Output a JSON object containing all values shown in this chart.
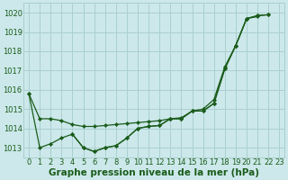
{
  "xlabel": "Graphe pression niveau de la mer (hPa)",
  "background_color": "#cce8ea",
  "grid_color": "#aacfcf",
  "line_color": "#1a5c1a",
  "marker_color": "#1a5c1a",
  "ylim": [
    1012.5,
    1020.5
  ],
  "xlim": [
    -0.5,
    23.5
  ],
  "yticks": [
    1013,
    1014,
    1015,
    1016,
    1017,
    1018,
    1019,
    1020
  ],
  "xticks": [
    0,
    1,
    2,
    3,
    4,
    5,
    6,
    7,
    8,
    9,
    10,
    11,
    12,
    13,
    14,
    15,
    16,
    17,
    18,
    19,
    20,
    21,
    22,
    23
  ],
  "series1_x": [
    0,
    1,
    2,
    3,
    4,
    5,
    6,
    7,
    8,
    9,
    10,
    11,
    12,
    13,
    14,
    15,
    16,
    17,
    18,
    19,
    20,
    21
  ],
  "series1_y": [
    1015.8,
    1014.5,
    1014.5,
    1014.4,
    1014.2,
    1014.1,
    1014.1,
    1014.15,
    1014.2,
    1014.25,
    1014.3,
    1014.35,
    1014.4,
    1014.5,
    1014.55,
    1014.9,
    1015.0,
    1015.5,
    1017.2,
    1018.3,
    1019.7,
    1019.8
  ],
  "series2_x": [
    0,
    1,
    2,
    3,
    4,
    5,
    6,
    7,
    8,
    9,
    10,
    11,
    12,
    13,
    14,
    15,
    16,
    17,
    18,
    19,
    20,
    21,
    22
  ],
  "series2_y": [
    1015.8,
    1013.0,
    1013.2,
    1013.5,
    1013.7,
    1013.0,
    1012.8,
    1013.0,
    1013.1,
    1013.5,
    1014.0,
    1014.1,
    1014.15,
    1014.5,
    1014.5,
    1014.9,
    1014.9,
    1015.3,
    1017.1,
    1018.3,
    1019.7,
    1019.85,
    1019.9
  ],
  "series3_x": [
    4,
    5,
    6,
    7,
    8,
    9,
    10,
    11,
    12,
    13,
    14,
    15,
    16,
    17,
    18,
    19,
    20,
    21,
    22
  ],
  "series3_y": [
    1013.7,
    1013.0,
    1012.8,
    1013.0,
    1013.1,
    1013.5,
    1014.0,
    1014.1,
    1014.15,
    1014.5,
    1014.5,
    1014.9,
    1014.9,
    1015.3,
    1017.1,
    1018.3,
    1019.7,
    1019.85,
    1019.9
  ],
  "font_color": "#1a5c1a",
  "xlabel_fontsize": 7.5,
  "tick_fontsize": 6
}
